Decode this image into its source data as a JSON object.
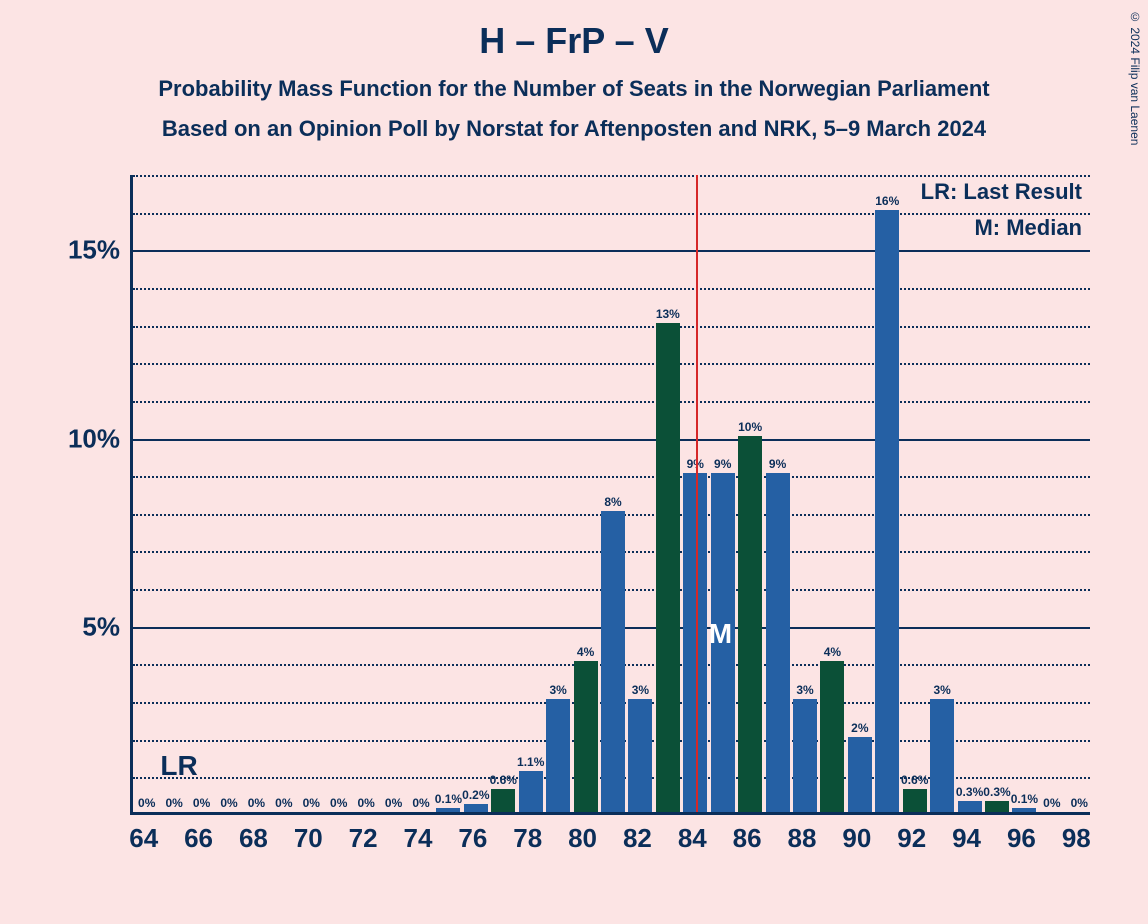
{
  "copyright": "© 2024 Filip van Laenen",
  "title": "H – FrP – V",
  "subtitle1": "Probability Mass Function for the Number of Seats in the Norwegian Parliament",
  "subtitle2": "Based on an Opinion Poll by Norstat for Aftenposten and NRK, 5–9 March 2024",
  "legend_lr": "LR: Last Result",
  "legend_m": "M: Median",
  "lr_marker": "LR",
  "m_marker": "M",
  "chart": {
    "type": "bar",
    "background_color": "#fce4e4",
    "axis_color": "#0b2e59",
    "grid_major_color": "#0b2e59",
    "grid_minor_color": "#0b2e59",
    "median_line_color": "#d62728",
    "text_color": "#0b2e59",
    "m_label_color": "#ffffff",
    "bar_color_blue": "#2560a4",
    "bar_color_green": "#0b5037",
    "title_fontsize": 36,
    "subtitle_fontsize": 22,
    "axis_label_fontsize": 26,
    "bar_label_fontsize": 12,
    "legend_fontsize": 22,
    "ylim": [
      0,
      17
    ],
    "y_major_ticks": [
      5,
      10,
      15
    ],
    "y_minor_step": 1,
    "x_start": 64,
    "x_end": 98,
    "x_tick_step": 2,
    "bar_gap_ratio": 0.12,
    "lr_position": 65,
    "median_position": 84.5,
    "bars": [
      {
        "x": 64,
        "v": 0,
        "label": "0%",
        "c": "blue"
      },
      {
        "x": 65,
        "v": 0,
        "label": "0%",
        "c": "blue"
      },
      {
        "x": 66,
        "v": 0,
        "label": "0%",
        "c": "blue"
      },
      {
        "x": 67,
        "v": 0,
        "label": "0%",
        "c": "blue"
      },
      {
        "x": 68,
        "v": 0,
        "label": "0%",
        "c": "blue"
      },
      {
        "x": 69,
        "v": 0,
        "label": "0%",
        "c": "blue"
      },
      {
        "x": 70,
        "v": 0,
        "label": "0%",
        "c": "blue"
      },
      {
        "x": 71,
        "v": 0,
        "label": "0%",
        "c": "blue"
      },
      {
        "x": 72,
        "v": 0,
        "label": "0%",
        "c": "blue"
      },
      {
        "x": 73,
        "v": 0,
        "label": "0%",
        "c": "blue"
      },
      {
        "x": 74,
        "v": 0,
        "label": "0%",
        "c": "blue"
      },
      {
        "x": 75,
        "v": 0.1,
        "label": "0.1%",
        "c": "blue"
      },
      {
        "x": 76,
        "v": 0.2,
        "label": "0.2%",
        "c": "blue"
      },
      {
        "x": 77,
        "v": 0.6,
        "label": "0.6%",
        "c": "green"
      },
      {
        "x": 78,
        "v": 1.1,
        "label": "1.1%",
        "c": "blue"
      },
      {
        "x": 79,
        "v": 3,
        "label": "3%",
        "c": "blue"
      },
      {
        "x": 80,
        "v": 4,
        "label": "4%",
        "c": "green"
      },
      {
        "x": 81,
        "v": 8,
        "label": "8%",
        "c": "blue"
      },
      {
        "x": 82,
        "v": 3,
        "label": "3%",
        "c": "blue"
      },
      {
        "x": 83,
        "v": 13,
        "label": "13%",
        "c": "green"
      },
      {
        "x": 84,
        "v": 9,
        "label": "9%",
        "c": "blue"
      },
      {
        "x": 85,
        "v": 9,
        "label": "9%",
        "c": "blue"
      },
      {
        "x": 86,
        "v": 10,
        "label": "10%",
        "c": "green"
      },
      {
        "x": 87,
        "v": 9,
        "label": "9%",
        "c": "blue"
      },
      {
        "x": 88,
        "v": 3,
        "label": "3%",
        "c": "blue"
      },
      {
        "x": 89,
        "v": 4,
        "label": "4%",
        "c": "green"
      },
      {
        "x": 90,
        "v": 2,
        "label": "2%",
        "c": "blue"
      },
      {
        "x": 91,
        "v": 16,
        "label": "16%",
        "c": "blue"
      },
      {
        "x": 92,
        "v": 0.6,
        "label": "0.6%",
        "c": "green"
      },
      {
        "x": 93,
        "v": 3,
        "label": "3%",
        "c": "blue"
      },
      {
        "x": 94,
        "v": 0.3,
        "label": "0.3%",
        "c": "blue"
      },
      {
        "x": 95,
        "v": 0.3,
        "label": "0.3%",
        "c": "green"
      },
      {
        "x": 96,
        "v": 0.1,
        "label": "0.1%",
        "c": "blue"
      },
      {
        "x": 97,
        "v": 0,
        "label": "0%",
        "c": "blue"
      },
      {
        "x": 98,
        "v": 0,
        "label": "0%",
        "c": "blue"
      }
    ]
  }
}
